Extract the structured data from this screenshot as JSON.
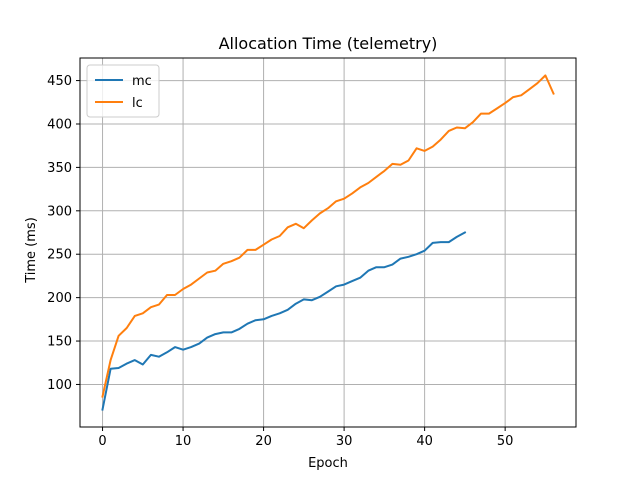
{
  "chart_data": {
    "type": "line",
    "title": "Allocation Time (telemetry)",
    "xlabel": "Epoch",
    "ylabel": "Time (ms)",
    "xlim": [
      -2.8,
      58.8
    ],
    "ylim": [
      51,
      476
    ],
    "xticks": [
      0,
      10,
      20,
      30,
      40,
      50
    ],
    "yticks": [
      100,
      150,
      200,
      250,
      300,
      350,
      400,
      450
    ],
    "grid": true,
    "legend_position": "top-left",
    "series": [
      {
        "name": "mc",
        "color": "#1f77b4",
        "x": [
          0,
          1,
          2,
          3,
          4,
          5,
          6,
          7,
          8,
          9,
          10,
          11,
          12,
          13,
          14,
          15,
          16,
          17,
          18,
          19,
          20,
          21,
          22,
          23,
          24,
          25,
          26,
          27,
          28,
          29,
          30,
          31,
          32,
          33,
          34,
          35,
          36,
          37,
          38,
          39,
          40,
          41,
          42,
          43,
          44,
          45
        ],
        "values": [
          71,
          118,
          119,
          124,
          128,
          123,
          134,
          132,
          137,
          143,
          140,
          143,
          147,
          154,
          158,
          160,
          160,
          164,
          170,
          174,
          175,
          179,
          182,
          186,
          193,
          198,
          197,
          201,
          207,
          213,
          215,
          219,
          223,
          231,
          235,
          235,
          238,
          245,
          247,
          250,
          254,
          263,
          264,
          264,
          270,
          275
        ]
      },
      {
        "name": "lc",
        "color": "#ff7f0e",
        "x": [
          0,
          1,
          2,
          3,
          4,
          5,
          6,
          7,
          8,
          9,
          10,
          11,
          12,
          13,
          14,
          15,
          16,
          17,
          18,
          19,
          20,
          21,
          22,
          23,
          24,
          25,
          26,
          27,
          28,
          29,
          30,
          31,
          32,
          33,
          34,
          35,
          36,
          37,
          38,
          39,
          40,
          41,
          42,
          43,
          44,
          45,
          46,
          47,
          48,
          49,
          50,
          51,
          52,
          53,
          54,
          55,
          56
        ],
        "values": [
          86,
          128,
          156,
          165,
          179,
          182,
          189,
          192,
          203,
          203,
          210,
          215,
          222,
          229,
          231,
          239,
          242,
          246,
          255,
          255,
          261,
          267,
          271,
          281,
          285,
          280,
          289,
          297,
          303,
          311,
          314,
          320,
          327,
          332,
          339,
          346,
          354,
          353,
          358,
          372,
          369,
          374,
          382,
          392,
          396,
          395,
          402,
          412,
          412,
          418,
          424,
          431,
          433,
          440,
          447,
          456,
          435
        ]
      }
    ]
  }
}
